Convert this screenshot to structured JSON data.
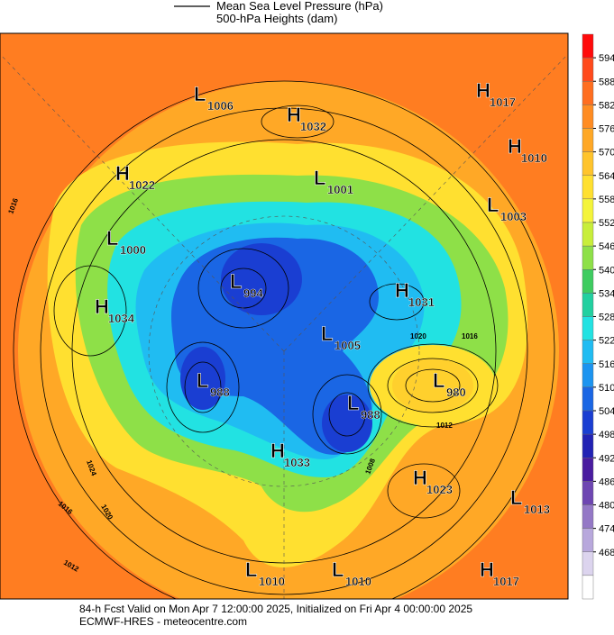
{
  "header": {
    "line_legend": "Mean Sea Level Pressure (hPa)",
    "fill_legend": "500-hPa Heights (dam)"
  },
  "colorbar": {
    "ticks": [
      594,
      588,
      582,
      576,
      570,
      564,
      558,
      552,
      546,
      540,
      534,
      528,
      522,
      516,
      510,
      504,
      498,
      492,
      486,
      480,
      474,
      468
    ],
    "colors": [
      "#ff0a0a",
      "#ff4a1c",
      "#ff6e20",
      "#ff8c22",
      "#ffa826",
      "#ffc42c",
      "#ffe030",
      "#f4f43a",
      "#c8ee3a",
      "#8ee048",
      "#3ecc60",
      "#22d0a0",
      "#22e2e2",
      "#20bcf2",
      "#1c94f0",
      "#1a66e4",
      "#1a3ed2",
      "#2222b4",
      "#4a1ca0",
      "#6e46b2",
      "#9478c6",
      "#b8a8dc",
      "#dcd4ee",
      "#ffffff"
    ]
  },
  "centers": [
    {
      "kind": "L",
      "value": 1006
    },
    {
      "kind": "H",
      "value": 1032
    },
    {
      "kind": "H",
      "value": 1017
    },
    {
      "kind": "H",
      "value": 1010
    },
    {
      "kind": "H",
      "value": 1022
    },
    {
      "kind": "L",
      "value": 1001
    },
    {
      "kind": "L",
      "value": 1003
    },
    {
      "kind": "L",
      "value": 1000
    },
    {
      "kind": "L",
      "value": 994
    },
    {
      "kind": "H",
      "value": 1031
    },
    {
      "kind": "H",
      "value": 1034
    },
    {
      "kind": "L",
      "value": 1005
    },
    {
      "kind": "L",
      "value": 980
    },
    {
      "kind": "L",
      "value": 988
    },
    {
      "kind": "L",
      "value": 988
    },
    {
      "kind": "H",
      "value": 1033
    },
    {
      "kind": "H",
      "value": 1023
    },
    {
      "kind": "L",
      "value": 1013
    },
    {
      "kind": "L",
      "value": 1010
    },
    {
      "kind": "L",
      "value": 1010
    },
    {
      "kind": "H",
      "value": 1017
    }
  ],
  "isobar_labels": [
    1016,
    1024,
    1020,
    1016,
    1012,
    1012,
    1008,
    1016,
    1020
  ],
  "footer": {
    "line1": "84-h Fcst Valid on Mon Apr  7 12:00:00 2025, Initialized on Fri Apr  4 00:00:00 2025",
    "line2": "ECMWF-HRES  - meteocentre.com"
  }
}
